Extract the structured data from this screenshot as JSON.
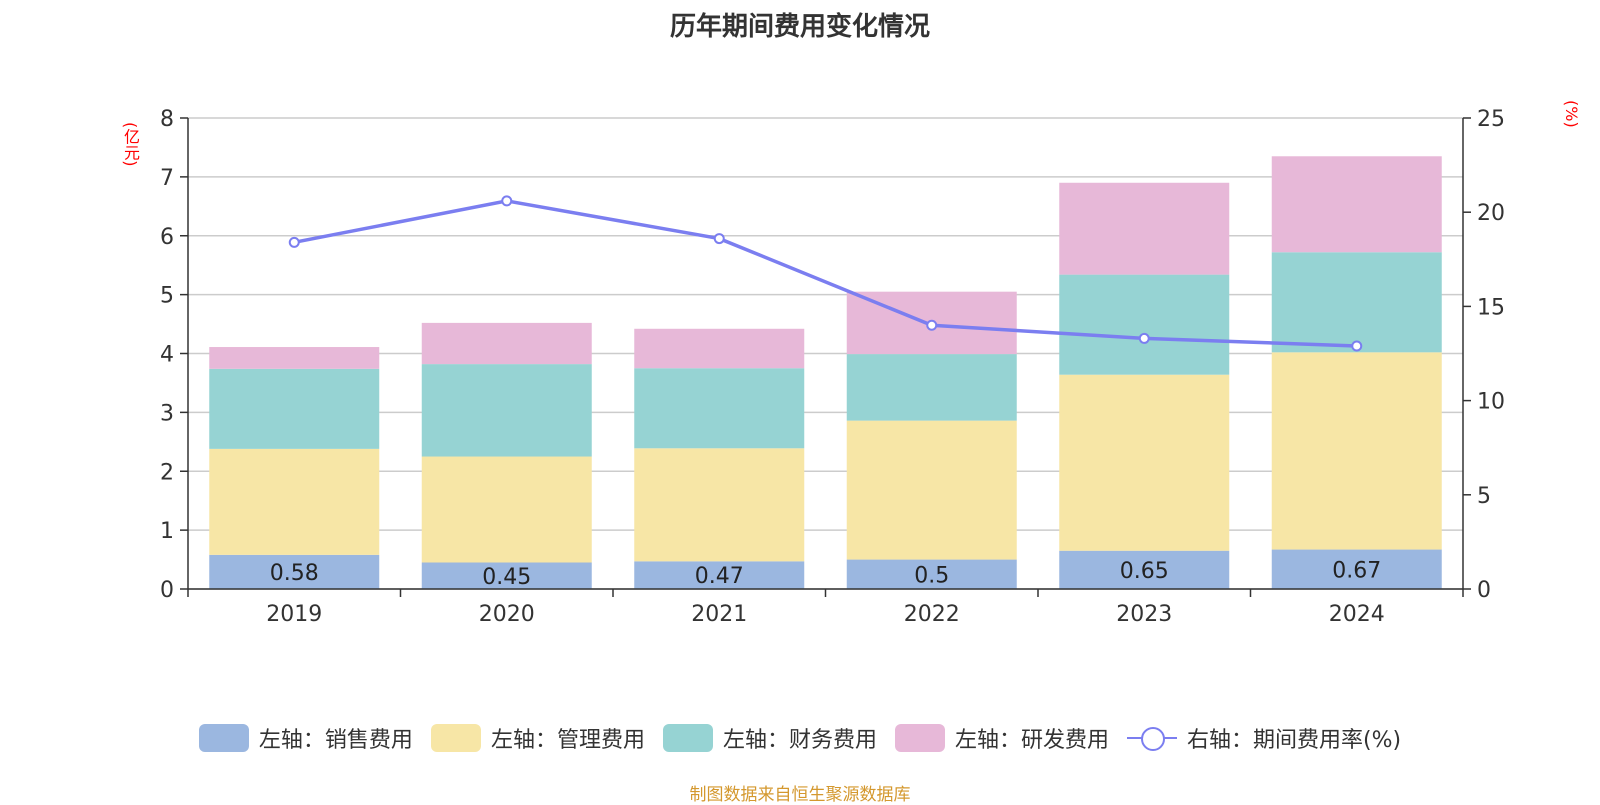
{
  "chart_data": {
    "type": "bar",
    "title": "历年期间费用变化情况",
    "ylabel_left": "(亿元)",
    "ylabel_right": "(%)",
    "categories": [
      "2019",
      "2020",
      "2021",
      "2022",
      "2023",
      "2024"
    ],
    "ylim_left": [
      0,
      8
    ],
    "yticks_left": [
      "0",
      "1",
      "2",
      "3",
      "4",
      "5",
      "6",
      "7",
      "8"
    ],
    "ylim_right": [
      0,
      25
    ],
    "yticks_right": [
      "0",
      "5",
      "10",
      "15",
      "20",
      "25"
    ],
    "grid": true,
    "legend_position": "bottom",
    "series": [
      {
        "name": "左轴：销售费用",
        "axis": "left",
        "stack": true,
        "color": "#9bb7e0",
        "values": [
          0.58,
          0.45,
          0.47,
          0.5,
          0.65,
          0.67
        ],
        "labels": [
          "0.58",
          "0.45",
          "0.47",
          "0.5",
          "0.65",
          "0.67"
        ]
      },
      {
        "name": "左轴：管理费用",
        "axis": "left",
        "stack": true,
        "color": "#f7e6a6",
        "values": [
          1.8,
          1.8,
          1.92,
          2.36,
          2.99,
          3.35
        ]
      },
      {
        "name": "左轴：财务费用",
        "axis": "left",
        "stack": true,
        "color": "#96d3d3",
        "values": [
          1.36,
          1.57,
          1.36,
          1.13,
          1.7,
          1.7
        ]
      },
      {
        "name": "左轴：研发费用",
        "axis": "left",
        "stack": true,
        "color": "#e7b8d8",
        "values": [
          0.37,
          0.7,
          0.67,
          1.06,
          1.56,
          1.63
        ]
      },
      {
        "name": "右轴：期间费用率(%)",
        "axis": "right",
        "type": "line",
        "color": "#7b7ef0",
        "values": [
          18.4,
          20.6,
          18.6,
          14.0,
          13.3,
          12.9
        ]
      }
    ]
  },
  "footer": "制图数据来自恒生聚源数据库"
}
